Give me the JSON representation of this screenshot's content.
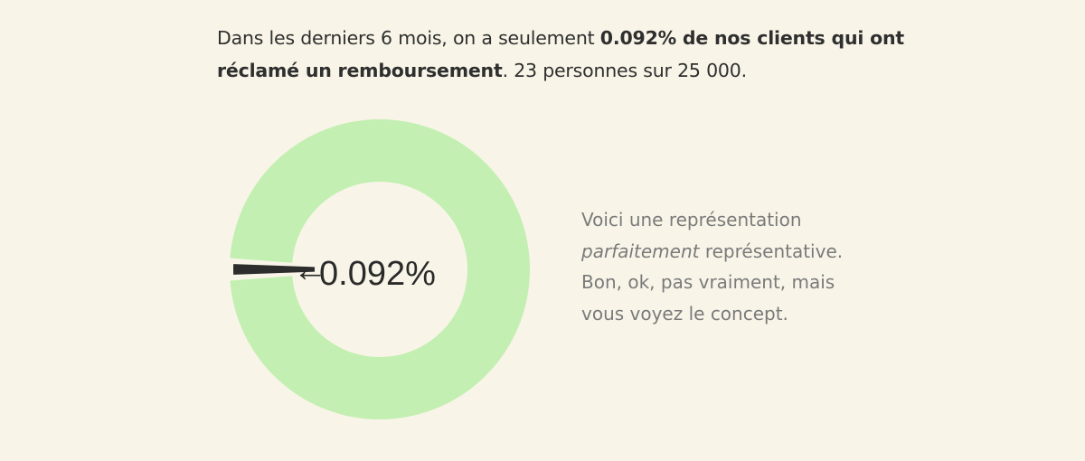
{
  "intro": {
    "part1": "Dans les derniers 6 mois, on a seulement ",
    "bold": "0.092% de nos clients qui ont réclamé un remboursement",
    "part2": ". 23 personnes sur 25 000."
  },
  "chart_data": {
    "type": "pie",
    "labels": [
      "",
      ""
    ],
    "values": [
      0.092,
      99.908
    ],
    "colors": [
      "#2d2d2d",
      "#c3efb2"
    ],
    "center_label": "0.092%",
    "annotation_arrow": "←",
    "title": "",
    "note": "donut chart; refund slice is exaggerated in size"
  },
  "note": {
    "line1": "Voici une représentation",
    "italic": "parfaitement",
    "line2_rest": " représentative.",
    "line3": "Bon, ok, pas vraiment, mais",
    "line4": "vous voyez le concept."
  },
  "colors": {
    "background": "#f8f5e8",
    "ring": "#c3efb2",
    "slice": "#2d2d2d",
    "text_main": "#2f2f2f",
    "text_note": "#7a7a7a"
  }
}
